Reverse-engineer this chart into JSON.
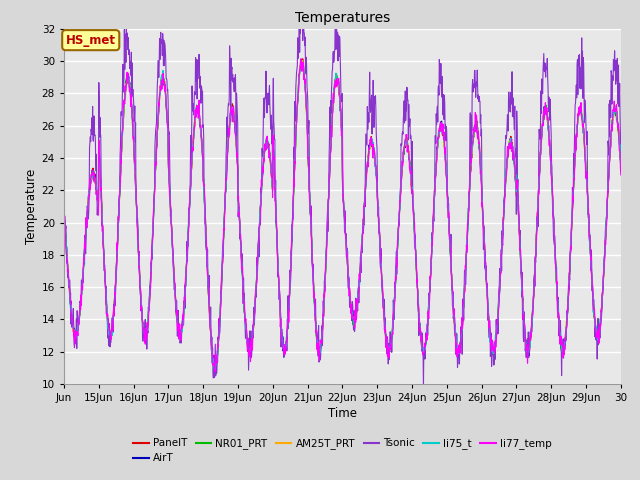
{
  "title": "Temperatures",
  "ylabel": "Temperature",
  "xlabel": "Time",
  "ylim": [
    10,
    32
  ],
  "series": [
    "PanelT",
    "AirT",
    "NR01_PRT",
    "AM25T_PRT",
    "Tsonic",
    "li75_t",
    "li77_temp"
  ],
  "colors": [
    "#dd0000",
    "#0000bb",
    "#00bb00",
    "#ffaa00",
    "#8833cc",
    "#00cccc",
    "#ff00ff"
  ],
  "annotation_text": "HS_met",
  "annotation_bg": "#ffff99",
  "annotation_border": "#996600",
  "annotation_textcolor": "#bb0000",
  "background_color": "#d8d8d8",
  "plot_bg": "#e8e8e8",
  "grid_color": "#ffffff",
  "n_points": 1440,
  "start_day": 14,
  "end_day": 30,
  "tick_days": [
    14,
    15,
    16,
    17,
    18,
    19,
    20,
    21,
    22,
    23,
    24,
    25,
    26,
    27,
    28,
    29,
    30
  ],
  "tick_labels": [
    "Jun",
    "15Jun",
    "16Jun",
    "17Jun",
    "18Jun",
    "19Jun",
    "20Jun",
    "21Jun",
    "22Jun",
    "23Jun",
    "24Jun",
    "25Jun",
    "26Jun",
    "27Jun",
    "28Jun",
    "29Jun",
    "30"
  ]
}
